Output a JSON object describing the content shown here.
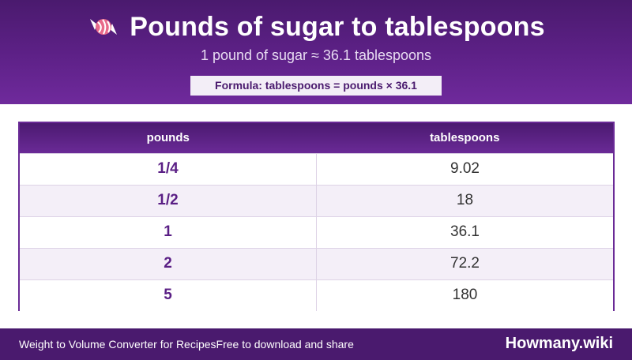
{
  "header": {
    "title": "Pounds of sugar to tablespoons",
    "icon": "candy-icon",
    "subtitle": "1 pound of sugar ≈ 36.1 tablespoons",
    "formula": "Formula: tablespoons = pounds × 36.1"
  },
  "table": {
    "columns": [
      "pounds",
      "tablespoons"
    ],
    "rows": [
      {
        "pounds": "1/4",
        "tablespoons": "9.02"
      },
      {
        "pounds": "1/2",
        "tablespoons": "18"
      },
      {
        "pounds": "1",
        "tablespoons": "36.1"
      },
      {
        "pounds": "2",
        "tablespoons": "72.2"
      },
      {
        "pounds": "5",
        "tablespoons": "180"
      }
    ]
  },
  "footer": {
    "app_name": "Weight to Volume Converter for Recipes",
    "tagline": "Free to download and share",
    "brand": "Howmany.wiki"
  },
  "colors": {
    "header_purple": "#5e2188",
    "accent_text": "#5a1f85",
    "footer_purple": "#4a1a6e"
  }
}
